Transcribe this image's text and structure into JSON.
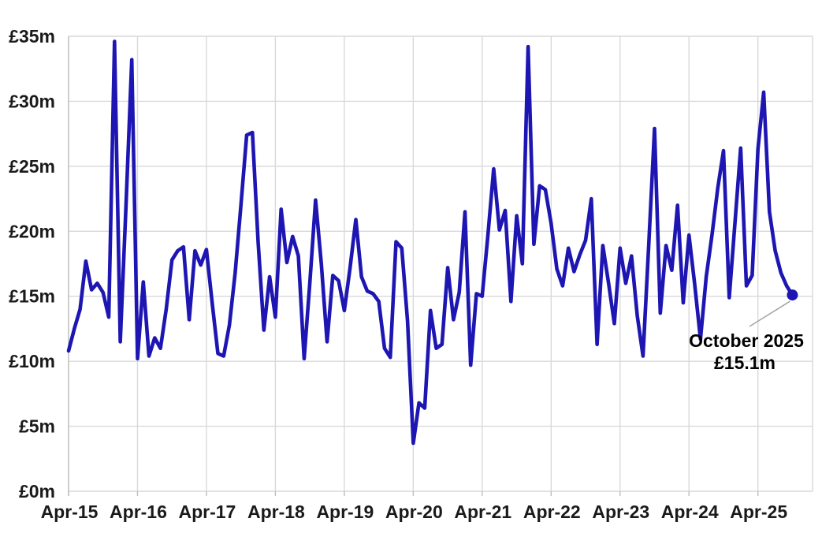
{
  "chart_data": {
    "type": "line",
    "title": "",
    "xlabel": "",
    "ylabel": "",
    "ylim": [
      0,
      35
    ],
    "grid": true,
    "legend_position": "none",
    "line_color": "#1e16b2",
    "gridline_color": "#d9d9d9",
    "leader_color": "#a6a6a6",
    "label_color": "#1a1a1a",
    "y_tick_labels": [
      "£0m",
      "£5m",
      "£10m",
      "£15m",
      "£20m",
      "£25m",
      "£30m",
      "£35m"
    ],
    "x_tick_labels": [
      "Apr-15",
      "Apr-16",
      "Apr-17",
      "Apr-18",
      "Apr-19",
      "Apr-20",
      "Apr-21",
      "Apr-22",
      "Apr-23",
      "Apr-24",
      "Apr-25"
    ],
    "months": [
      "Apr-15",
      "May-15",
      "Jun-15",
      "Jul-15",
      "Aug-15",
      "Sep-15",
      "Oct-15",
      "Nov-15",
      "Dec-15",
      "Jan-16",
      "Feb-16",
      "Mar-16",
      "Apr-16",
      "May-16",
      "Jun-16",
      "Jul-16",
      "Aug-16",
      "Sep-16",
      "Oct-16",
      "Nov-16",
      "Dec-16",
      "Jan-17",
      "Feb-17",
      "Mar-17",
      "Apr-17",
      "May-17",
      "Jun-17",
      "Jul-17",
      "Aug-17",
      "Sep-17",
      "Oct-17",
      "Nov-17",
      "Dec-17",
      "Jan-18",
      "Feb-18",
      "Mar-18",
      "Apr-18",
      "May-18",
      "Jun-18",
      "Jul-18",
      "Aug-18",
      "Sep-18",
      "Oct-18",
      "Nov-18",
      "Dec-18",
      "Jan-19",
      "Feb-19",
      "Mar-19",
      "Apr-19",
      "May-19",
      "Jun-19",
      "Jul-19",
      "Aug-19",
      "Sep-19",
      "Oct-19",
      "Nov-19",
      "Dec-19",
      "Jan-20",
      "Feb-20",
      "Mar-20",
      "Apr-20",
      "May-20",
      "Jun-20",
      "Jul-20",
      "Aug-20",
      "Sep-20",
      "Oct-20",
      "Nov-20",
      "Dec-20",
      "Jan-21",
      "Feb-21",
      "Mar-21",
      "Apr-21",
      "May-21",
      "Jun-21",
      "Jul-21",
      "Aug-21",
      "Sep-21",
      "Oct-21",
      "Nov-21",
      "Dec-21",
      "Jan-22",
      "Feb-22",
      "Mar-22",
      "Apr-22",
      "May-22",
      "Jun-22",
      "Jul-22",
      "Aug-22",
      "Sep-22",
      "Oct-22",
      "Nov-22",
      "Dec-22",
      "Jan-23",
      "Feb-23",
      "Mar-23",
      "Apr-23",
      "May-23",
      "Jun-23",
      "Jul-23",
      "Aug-23",
      "Sep-23",
      "Oct-23",
      "Nov-23",
      "Dec-23",
      "Jan-24",
      "Feb-24",
      "Mar-24",
      "Apr-24",
      "May-24",
      "Jun-24",
      "Jul-24",
      "Aug-24",
      "Sep-24",
      "Oct-24",
      "Nov-24",
      "Dec-24",
      "Jan-25",
      "Feb-25",
      "Mar-25",
      "Apr-25",
      "May-25",
      "Jun-25",
      "Jul-25",
      "Aug-25",
      "Sep-25",
      "Oct-25"
    ],
    "values": [
      10.8,
      12.5,
      14.0,
      17.7,
      15.5,
      16.0,
      15.3,
      13.4,
      34.6,
      11.5,
      22.0,
      33.2,
      10.2,
      16.1,
      10.4,
      11.8,
      11.0,
      14.0,
      17.8,
      18.5,
      18.8,
      13.2,
      18.5,
      17.4,
      18.6,
      14.5,
      10.6,
      10.4,
      12.8,
      16.8,
      22.0,
      27.4,
      27.6,
      19.2,
      12.4,
      16.5,
      13.4,
      21.7,
      17.6,
      19.6,
      18.1,
      10.2,
      16.0,
      22.4,
      17.5,
      11.5,
      16.6,
      16.2,
      13.9,
      17.2,
      20.9,
      16.5,
      15.4,
      15.2,
      14.6,
      11.0,
      10.3,
      19.2,
      18.7,
      13.1,
      3.7,
      6.8,
      6.4,
      13.9,
      11.0,
      11.3,
      17.2,
      13.2,
      15.3,
      21.5,
      9.7,
      15.2,
      15.0,
      19.7,
      24.8,
      20.1,
      21.6,
      14.6,
      21.2,
      17.5,
      34.2,
      19.0,
      23.5,
      23.2,
      20.6,
      17.1,
      15.8,
      18.7,
      16.9,
      18.2,
      19.3,
      22.5,
      11.3,
      18.9,
      16.0,
      12.9,
      18.7,
      16.0,
      18.1,
      13.5,
      10.4,
      19.0,
      27.9,
      13.7,
      18.9,
      17.0,
      22.0,
      14.5,
      19.7,
      15.9,
      11.7,
      16.5,
      19.7,
      23.3,
      26.2,
      14.9,
      20.6,
      26.4,
      15.8,
      16.6,
      26.3,
      30.7,
      21.5,
      18.5,
      16.8,
      15.8,
      15.1
    ],
    "annotation": {
      "line1": "October 2025",
      "line2": "£15.1m",
      "attached_month": "Oct-25",
      "attached_value": 15.1
    }
  }
}
